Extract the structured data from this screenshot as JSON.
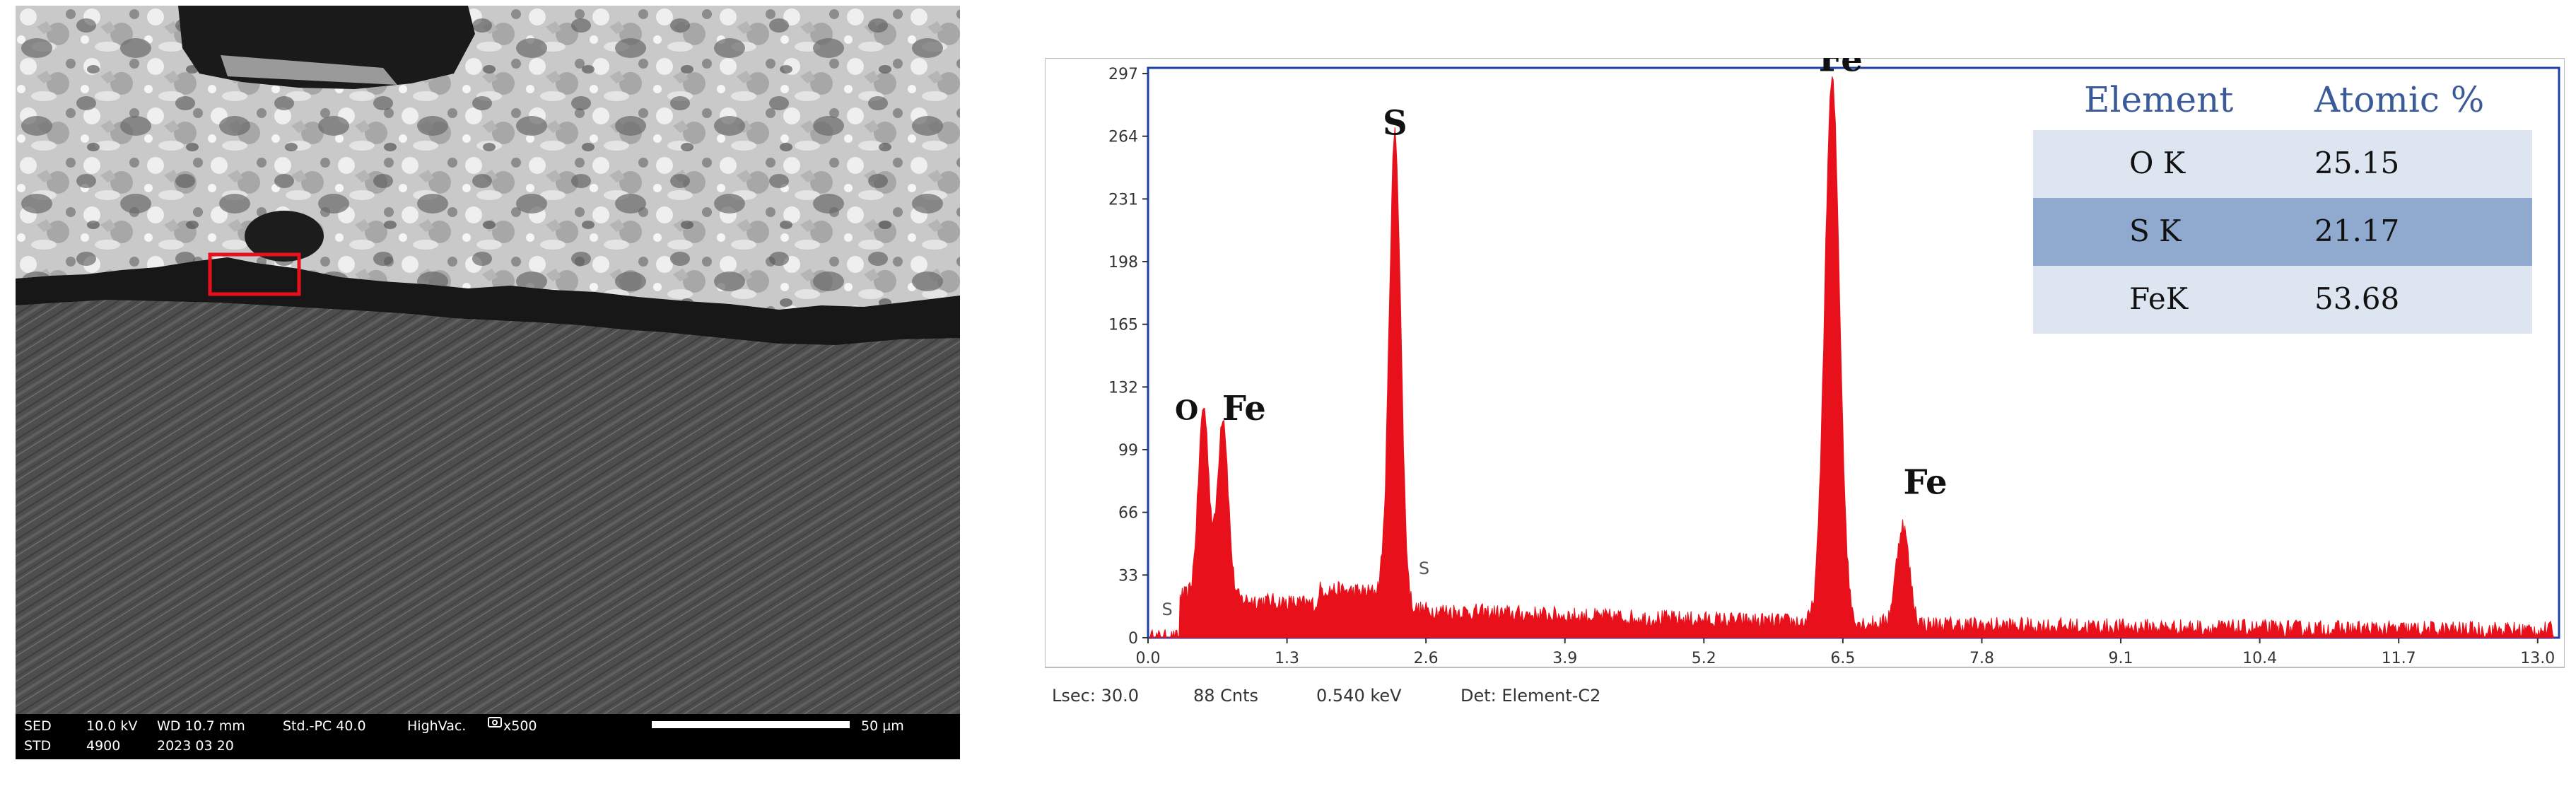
{
  "sem": {
    "info": {
      "detector_top": "SED",
      "detector_bottom": "STD",
      "voltage": "10.0 kV",
      "number": "4900",
      "working_distance": "WD 10.7 mm",
      "date": "2023 03 20",
      "probe": "Std.-PC 40.0",
      "vacuum": "HighVac.",
      "magnification": "x500",
      "scale_label": "50 µm"
    },
    "colors": {
      "roi_box": "#e8101a",
      "coating": "#d2d2d2",
      "substrate": "#505050",
      "interface": "#161616"
    }
  },
  "chart_data": {
    "type": "line",
    "title": "",
    "xlabel": "",
    "ylabel": "",
    "xlim": [
      0,
      13.2
    ],
    "ylim": [
      0,
      300
    ],
    "x_ticks": [
      "0.0",
      "1.3",
      "2.6",
      "3.9",
      "5.2",
      "6.5",
      "7.8",
      "9.1",
      "10.4",
      "11.7",
      "13.0"
    ],
    "y_ticks": [
      "0",
      "33",
      "66",
      "99",
      "132",
      "165",
      "198",
      "231",
      "264",
      "297"
    ],
    "series_color": "#e8101a",
    "peaks": [
      {
        "element": "O",
        "energy_keV": 0.52,
        "counts": 100
      },
      {
        "element": "Fe",
        "energy_keV": 0.7,
        "counts": 96
      },
      {
        "element": "S",
        "energy_keV": 2.31,
        "counts": 250
      },
      {
        "element": "Fe",
        "energy_keV": 6.4,
        "counts": 285
      },
      {
        "element": "Fe",
        "energy_keV": 7.06,
        "counts": 52
      }
    ],
    "markers": [
      {
        "label": "S",
        "energy_keV": 0.1
      },
      {
        "label": "S",
        "energy_keV": 2.45
      }
    ],
    "peak_labels": [
      "O",
      "Fe",
      "S",
      "Fe",
      "Fe"
    ],
    "composition_table": {
      "headers": [
        "Element",
        "Atomic %"
      ],
      "rows": [
        {
          "element": "O K",
          "atomic": "25.15"
        },
        {
          "element": "S K",
          "atomic": "21.17"
        },
        {
          "element": "FeK",
          "atomic": "53.68"
        }
      ],
      "row_colors": [
        "#dde5f0",
        "#8fa9cf",
        "#dde5f0"
      ]
    },
    "status": {
      "lsec": "Lsec: 30.0",
      "cnts": "88 Cnts",
      "kev": "0.540 keV",
      "det": "Det: Element-C2"
    }
  }
}
